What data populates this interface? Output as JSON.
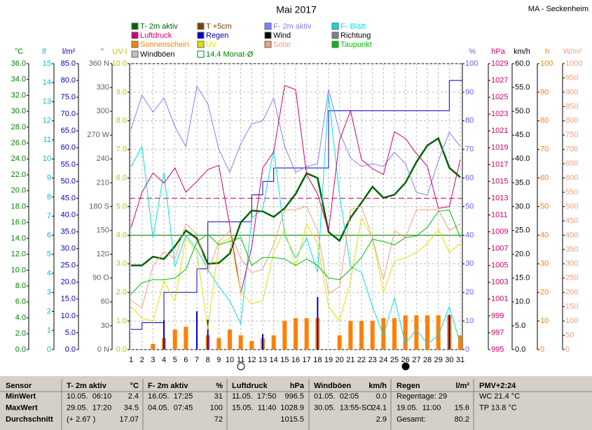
{
  "chart_data": {
    "type": "line",
    "title": "Mai 2017",
    "station": "MA - Seckenheim",
    "x": [
      1,
      2,
      3,
      4,
      5,
      6,
      7,
      8,
      9,
      10,
      11,
      12,
      13,
      14,
      15,
      16,
      17,
      18,
      19,
      20,
      21,
      22,
      23,
      24,
      25,
      26,
      27,
      28,
      29,
      30,
      31
    ],
    "xlim": [
      1,
      31
    ],
    "grid": true,
    "axes": [
      {
        "unit": "°C",
        "color": "#008000",
        "side": "left",
        "lim": [
          0,
          36
        ],
        "ticks": [
          {
            "value": 0,
            "label": "0.0"
          },
          {
            "value": 2,
            "label": "2.0"
          },
          {
            "value": 4,
            "label": "4.0"
          },
          {
            "value": 6,
            "label": "6.0"
          },
          {
            "value": 8,
            "label": "8.0"
          },
          {
            "value": 10,
            "label": "10.0"
          },
          {
            "value": 12,
            "label": "12.0"
          },
          {
            "value": 14,
            "label": "14.0"
          },
          {
            "value": 16,
            "label": "16.0"
          },
          {
            "value": 18,
            "label": "18.0"
          },
          {
            "value": 20,
            "label": "20.0"
          },
          {
            "value": 22,
            "label": "22.0"
          },
          {
            "value": 24,
            "label": "24.0"
          },
          {
            "value": 26,
            "label": "26.0"
          },
          {
            "value": 28,
            "label": "28.0"
          },
          {
            "value": 30,
            "label": "30.0"
          },
          {
            "value": 32,
            "label": "32.0"
          },
          {
            "value": 34,
            "label": "34.0"
          },
          {
            "value": 36,
            "label": "36.0"
          }
        ]
      },
      {
        "unit": "lf",
        "color": "#00c0c0",
        "side": "left",
        "lim": [
          0,
          15
        ],
        "ticks": [
          0,
          1,
          2,
          3,
          4,
          5,
          6,
          7,
          8,
          9,
          10,
          11,
          12,
          13,
          14,
          15
        ]
      },
      {
        "unit": "l/m²",
        "color": "#0000c0",
        "side": "left",
        "lim": [
          0,
          85
        ],
        "ticks": [
          {
            "value": 0,
            "label": "0.0"
          },
          {
            "value": 5,
            "label": "5.0"
          },
          {
            "value": 10,
            "label": "10.0"
          },
          {
            "value": 15,
            "label": "15.0"
          },
          {
            "value": 20,
            "label": "20.0"
          },
          {
            "value": 25,
            "label": "25.0"
          },
          {
            "value": 30,
            "label": "30.0"
          },
          {
            "value": 35,
            "label": "35.0"
          },
          {
            "value": 40,
            "label": "40.0"
          },
          {
            "value": 45,
            "label": "45.0"
          },
          {
            "value": 50,
            "label": "50.0"
          },
          {
            "value": 55,
            "label": "55.0"
          },
          {
            "value": 60,
            "label": "60.0"
          },
          {
            "value": 65,
            "label": "65.0"
          },
          {
            "value": 70,
            "label": "70.0"
          },
          {
            "value": 75,
            "label": "75.0"
          },
          {
            "value": 80,
            "label": "80.0"
          },
          {
            "value": 85,
            "label": "85.0"
          }
        ]
      },
      {
        "unit": "°",
        "color": "#606060",
        "side": "left",
        "lim": [
          0,
          360
        ],
        "ticks": [
          {
            "value": 0,
            "label": "0 N"
          },
          30,
          60,
          {
            "value": 90,
            "label": "90 O"
          },
          120,
          150,
          {
            "value": 180,
            "label": "180 S"
          },
          210,
          240,
          {
            "value": 270,
            "label": "270 W"
          },
          300,
          330,
          {
            "value": 360,
            "label": "360 N"
          }
        ]
      },
      {
        "unit": "UV-I",
        "color": "#c0c000",
        "side": "left",
        "lim": [
          0,
          10
        ],
        "ticks": [
          {
            "value": 0,
            "label": "0.0"
          },
          {
            "value": 1,
            "label": "1.0"
          },
          {
            "value": 2,
            "label": "2.0"
          },
          {
            "value": 3,
            "label": "3.0"
          },
          {
            "value": 4,
            "label": "4.0"
          },
          {
            "value": 5,
            "label": "5.0"
          },
          {
            "value": 6,
            "label": "6.0"
          },
          {
            "value": 7,
            "label": "7.0"
          },
          {
            "value": 8,
            "label": "8.0"
          },
          {
            "value": 9,
            "label": "9.0"
          },
          {
            "value": 10,
            "label": "10.0"
          }
        ]
      },
      {
        "unit": "%",
        "color": "#6060ff",
        "side": "right",
        "lim": [
          0,
          100
        ],
        "ticks": [
          0,
          10,
          20,
          30,
          40,
          50,
          60,
          70,
          80,
          90,
          100
        ]
      },
      {
        "unit": "hPa",
        "color": "#d0006f",
        "side": "right",
        "lim": [
          995,
          1029
        ],
        "ticks": [
          995,
          997,
          999,
          1001,
          1003,
          1005,
          1007,
          1009,
          1011,
          1013,
          1015,
          1017,
          1019,
          1021,
          1023,
          1025,
          1027,
          1029
        ]
      },
      {
        "unit": "km/h",
        "color": "#000000",
        "side": "right",
        "lim": [
          0,
          60
        ],
        "ticks": [
          {
            "value": 0,
            "label": "0.0"
          },
          {
            "value": 5,
            "label": "5.0"
          },
          {
            "value": 10,
            "label": "10.0"
          },
          {
            "value": 15,
            "label": "15.0"
          },
          {
            "value": 20,
            "label": "20.0"
          },
          {
            "value": 25,
            "label": "25.0"
          },
          {
            "value": 30,
            "label": "30.0"
          },
          {
            "value": 35,
            "label": "35.0"
          },
          {
            "value": 40,
            "label": "40.0"
          },
          {
            "value": 45,
            "label": "45.0"
          },
          {
            "value": 50,
            "label": "50.0"
          },
          {
            "value": 55,
            "label": "55.0"
          },
          {
            "value": 60,
            "label": "60.0"
          }
        ]
      },
      {
        "unit": "h",
        "color": "#ff8000",
        "side": "right",
        "lim": [
          0,
          100
        ],
        "ticks": [
          0,
          10,
          20,
          30,
          40,
          50,
          60,
          70,
          80,
          90,
          100
        ]
      },
      {
        "unit": "W/m²",
        "color": "#f0a080",
        "side": "right",
        "lim": [
          0,
          1000
        ],
        "ticks": [
          0,
          50,
          100,
          150,
          200,
          250,
          300,
          350,
          400,
          450,
          500,
          550,
          600,
          650,
          700,
          750,
          800,
          850,
          900,
          950,
          1000
        ]
      }
    ],
    "series": [
      {
        "name": "T- 2m aktiv",
        "color": "#006400",
        "axis": "°C",
        "style": "line",
        "width": 2.5,
        "values": [
          10.6,
          10.6,
          11.7,
          11.4,
          13.0,
          15.0,
          14.0,
          10.8,
          10.9,
          12.1,
          16.0,
          17.5,
          17.4,
          16.7,
          17.8,
          19.6,
          22.2,
          21.6,
          14.8,
          13.7,
          16.6,
          18.5,
          20.5,
          19.1,
          19.5,
          21.0,
          23.6,
          25.7,
          26.6,
          22.9,
          21.7
        ]
      },
      {
        "name": "T +5cm",
        "color": "#804000"
      },
      {
        "name": "F- 2m aktiv",
        "color": "#8080ff",
        "axis": "%",
        "style": "line",
        "width": 1,
        "values": [
          77,
          89,
          83,
          88,
          78,
          71,
          92,
          86,
          70,
          62,
          72,
          79,
          80,
          88,
          71,
          62,
          64,
          65,
          91,
          76,
          67,
          64,
          65,
          64,
          69,
          65,
          55,
          54,
          66,
          76,
          71
        ]
      },
      {
        "name": "F- Blatt",
        "color": "#00e0e0",
        "axis": "%",
        "style": "line",
        "width": 1,
        "values": [
          64,
          71,
          39,
          62,
          29,
          40,
          35,
          28,
          22,
          17,
          9,
          46,
          49,
          70,
          40,
          32,
          39,
          27,
          89,
          54,
          29,
          27,
          15,
          5,
          18,
          2,
          7,
          2,
          5,
          15,
          2
        ]
      },
      {
        "name": "Luftdruck",
        "color": "#d0006f",
        "axis": "hPa",
        "style": "line",
        "width": 1,
        "values": [
          1009.5,
          1013.7,
          1016.0,
          1014.8,
          1016.6,
          1013.7,
          1015.0,
          1016.4,
          1016.9,
          1009.7,
          1001.7,
          1007.2,
          1016.6,
          1018.5,
          1026.4,
          1025.9,
          1015.8,
          1013.5,
          1009.1,
          1019.9,
          1023.4,
          1017.6,
          1016.5,
          1015.8,
          1020.9,
          1020.1,
          1018.3,
          1016.8,
          1011.8,
          1012.0,
          1017.6
        ]
      },
      {
        "name": "Regen",
        "color": "#0000c0",
        "axis": "l/m²",
        "style": "step",
        "width": 1,
        "values": [
          6,
          8,
          8,
          17,
          17,
          17,
          24,
          38,
          38,
          38,
          38,
          46,
          50,
          54,
          54,
          54,
          54,
          54,
          71,
          71,
          71,
          71,
          71,
          71,
          71,
          71,
          71,
          71,
          71,
          80,
          80
        ],
        "daily": [
          null,
          null,
          null,
          8.7,
          null,
          null,
          11.4,
          8.9,
          null,
          null,
          null,
          null,
          4.6,
          null,
          null,
          null,
          null,
          15.6,
          null,
          null,
          null,
          null,
          null,
          null,
          null,
          null,
          null,
          null,
          null,
          10.4,
          null
        ]
      },
      {
        "name": "Wind",
        "color": "#000000"
      },
      {
        "name": "Richtung",
        "color": "#808080"
      },
      {
        "name": "Sonnenschein",
        "color": "#ff8000",
        "axis": "h",
        "style": "bar",
        "values": [
          0,
          0,
          2,
          4,
          7,
          8,
          0,
          5,
          4,
          7,
          5,
          3,
          4,
          5,
          10,
          11,
          11,
          11,
          0,
          5,
          10,
          10,
          10,
          11,
          11,
          12,
          12,
          12,
          12,
          12,
          5
        ]
      },
      {
        "name": "UV",
        "color": "#e0e000",
        "axis": "UV-I",
        "style": "line",
        "width": 1,
        "values": [
          1.5,
          1.1,
          1.0,
          2.4,
          1.7,
          3.9,
          3.4,
          0.7,
          3.7,
          3.9,
          2.0,
          1.6,
          1.7,
          3.4,
          4.2,
          2.9,
          4.4,
          3.7,
          1.5,
          1.0,
          2.4,
          4.6,
          3.9,
          2.0,
          3.1,
          3.2,
          3.4,
          3.7,
          4.2,
          3.4,
          3.7
        ]
      },
      {
        "name": "Solar",
        "color": "#f0a080",
        "axis": "W/m²",
        "style": "line",
        "width": 1,
        "values": [
          171,
          147,
          293,
          342,
          318,
          440,
          403,
          269,
          379,
          416,
          318,
          269,
          281,
          367,
          489,
          489,
          501,
          416,
          196,
          220,
          489,
          501,
          391,
          244,
          416,
          391,
          489,
          489,
          489,
          416,
          440
        ]
      },
      {
        "name": "Taupunkt",
        "color": "#00c000",
        "axis": "°C",
        "style": "line",
        "width": 1,
        "values": [
          7.0,
          8.4,
          8.8,
          8.8,
          9.0,
          10.1,
          13.6,
          14.5,
          13.2,
          13.6,
          14.1,
          10.6,
          11.6,
          11.6,
          11.4,
          10.6,
          11.4,
          10.6,
          9.0,
          8.8,
          10.1,
          11.6,
          13.9,
          13.6,
          13.2,
          14.1,
          14.3,
          15.4,
          17.4,
          17.6,
          14.1
        ]
      },
      {
        "name": "Windböen",
        "color": "#c0c0c0"
      },
      {
        "name": "14.4 Monat-Ø",
        "color": "#008000",
        "axis": "°C",
        "style": "hline",
        "value": 14.4
      }
    ],
    "reference_lines": [
      {
        "axis": "hPa",
        "value": 1013,
        "color": "#d0006f"
      }
    ]
  },
  "table": {
    "header": [
      "Sensor",
      "T- 2m aktiv",
      "°C",
      "F- 2m aktiv",
      "%",
      "Luftdruck",
      "hPa",
      "Windböen",
      "km/h",
      "Regen",
      "l/m²",
      "PMV+2:24"
    ],
    "rows": [
      [
        "MinWert",
        "10.05.  06:10",
        "2.4",
        "16.05.  17:25",
        "31",
        "11.05.  17:50",
        "996.5",
        "01.05.  02:05",
        "0.0",
        "Regentage: 29",
        null,
        "WC 21.4 °C"
      ],
      [
        "MaxWert",
        "29.05.  17:20",
        "34.5",
        "04.05.  07:45",
        "100",
        "15.05.  11:40",
        "1028.9",
        "30.05.  13:55-SO",
        "24.1",
        "19.05.  11:00",
        "15.6",
        "TP 13.8 °C"
      ],
      [
        "Durchschnitt",
        "(+ 2.67 )",
        "17.07",
        null,
        "72",
        null,
        "1015.5",
        null,
        "2.9",
        "Gesamt:",
        "80.2",
        null
      ]
    ]
  }
}
